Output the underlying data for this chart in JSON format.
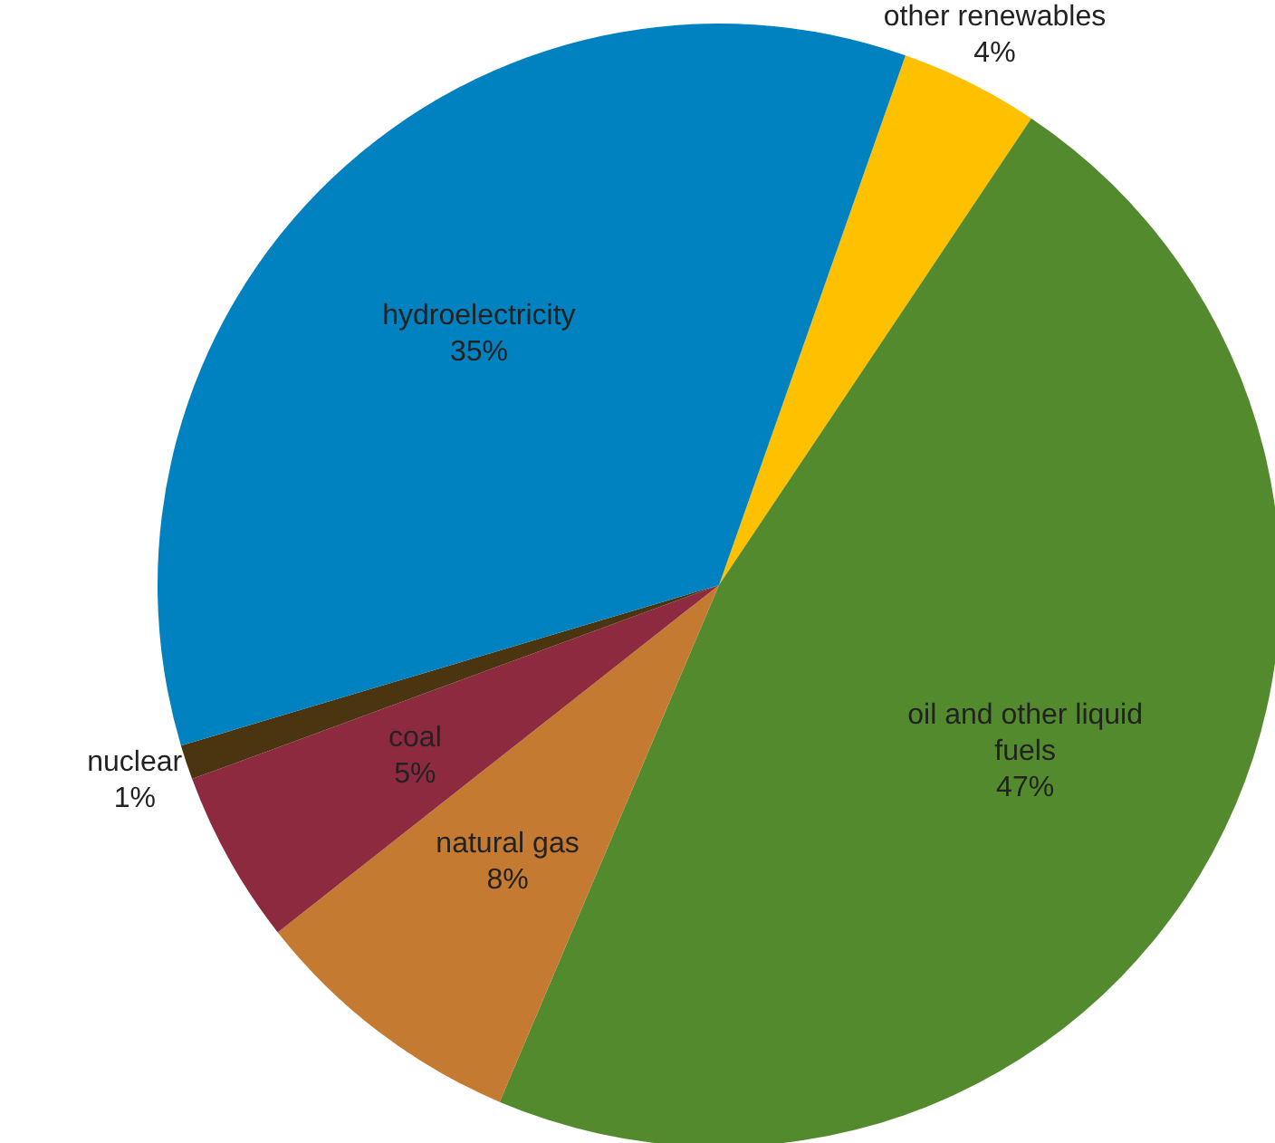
{
  "chart_data": {
    "type": "pie",
    "categories": [
      "other renewables",
      "oil and other liquid fuels",
      "natural gas",
      "coal",
      "nuclear",
      "hydroelectricity"
    ],
    "values": [
      4,
      47,
      8,
      5,
      1,
      35
    ],
    "value_labels": [
      "4%",
      "47%",
      "8%",
      "5%",
      "1%",
      "35%"
    ],
    "colors": [
      "#ffc000",
      "#548a2e",
      "#c47a30",
      "#8e2a40",
      "#4a3510",
      "#0081c0"
    ],
    "legend": false
  }
}
